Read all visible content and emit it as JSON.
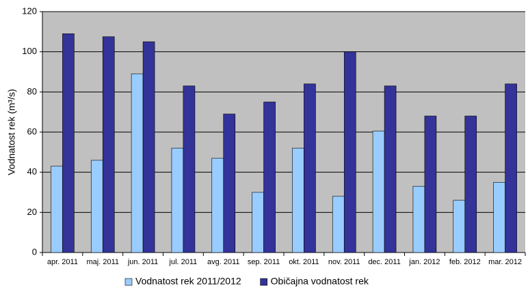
{
  "chart_data": {
    "type": "bar",
    "y_label": "Vodnatost rek (m³/s)",
    "categories": [
      "apr. 2011",
      "maj. 2011",
      "jun. 2011",
      "jul. 2011",
      "avg. 2011",
      "sep. 2011",
      "okt. 2011",
      "nov. 2011",
      "dec. 2011",
      "jan. 2012",
      "feb. 2012",
      "mar. 2012"
    ],
    "series": [
      {
        "name": "Vodnatost rek 2011/2012",
        "color": "#99ccff",
        "values": [
          43,
          46,
          89,
          52,
          47,
          30,
          52,
          28,
          60.5,
          33,
          26,
          35
        ]
      },
      {
        "name": "Običajna vodnatost rek",
        "color": "#333399",
        "values": [
          109,
          107.5,
          105,
          83,
          69,
          75,
          84,
          100,
          83,
          68,
          68,
          84
        ]
      }
    ],
    "ylim": [
      0,
      120
    ],
    "yticks": [
      0,
      20,
      40,
      60,
      80,
      100,
      120
    ],
    "grid": true,
    "legend": "bottom"
  }
}
